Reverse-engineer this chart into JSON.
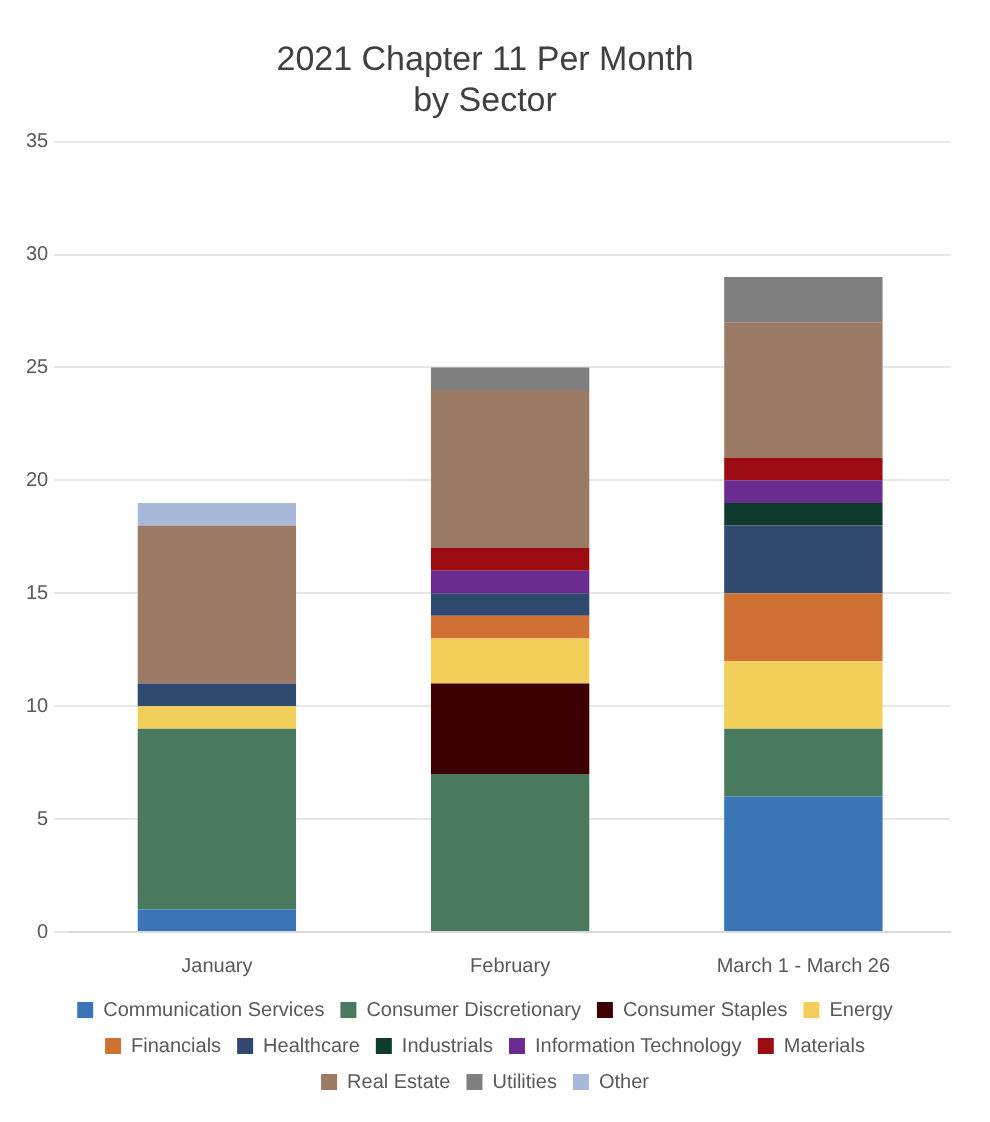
{
  "chart_data": {
    "type": "bar",
    "title": "2021 Chapter 11 Per Month\nby Sector",
    "stacked": true,
    "categories": [
      "January",
      "February",
      "March 1 - March 26"
    ],
    "series": [
      {
        "name": "Communication Services",
        "color": "#3a75b8",
        "values": [
          1,
          null,
          6
        ]
      },
      {
        "name": "Consumer Discretionary",
        "color": "#4a7a5e",
        "values": [
          8,
          7,
          3
        ]
      },
      {
        "name": "Consumer Staples",
        "color": "#3d0000",
        "values": [
          null,
          4,
          null
        ]
      },
      {
        "name": "Energy",
        "color": "#f2cf5a",
        "values": [
          1,
          2,
          3
        ]
      },
      {
        "name": "Financials",
        "color": "#cf7035",
        "values": [
          null,
          1,
          3
        ]
      },
      {
        "name": "Healthcare",
        "color": "#2f4a6e",
        "values": [
          1,
          1,
          3
        ]
      },
      {
        "name": "Industrials",
        "color": "#0f3a2e",
        "values": [
          null,
          null,
          1
        ]
      },
      {
        "name": "Information Technology",
        "color": "#6a2c91",
        "values": [
          null,
          1,
          1
        ]
      },
      {
        "name": "Materials",
        "color": "#9b0d12",
        "values": [
          null,
          1,
          1
        ]
      },
      {
        "name": "Real Estate",
        "color": "#9b7b66",
        "values": [
          7,
          7,
          6
        ]
      },
      {
        "name": "Utilities",
        "color": "#7f7f7f",
        "values": [
          null,
          1,
          2
        ]
      },
      {
        "name": "Other",
        "color": "#a7b8d8",
        "values": [
          1,
          null,
          null
        ]
      }
    ],
    "ylim": [
      0,
      35
    ],
    "yticks": [
      0,
      5,
      10,
      15,
      20,
      25,
      30,
      35
    ],
    "grid": "y",
    "legend": "bottom"
  }
}
